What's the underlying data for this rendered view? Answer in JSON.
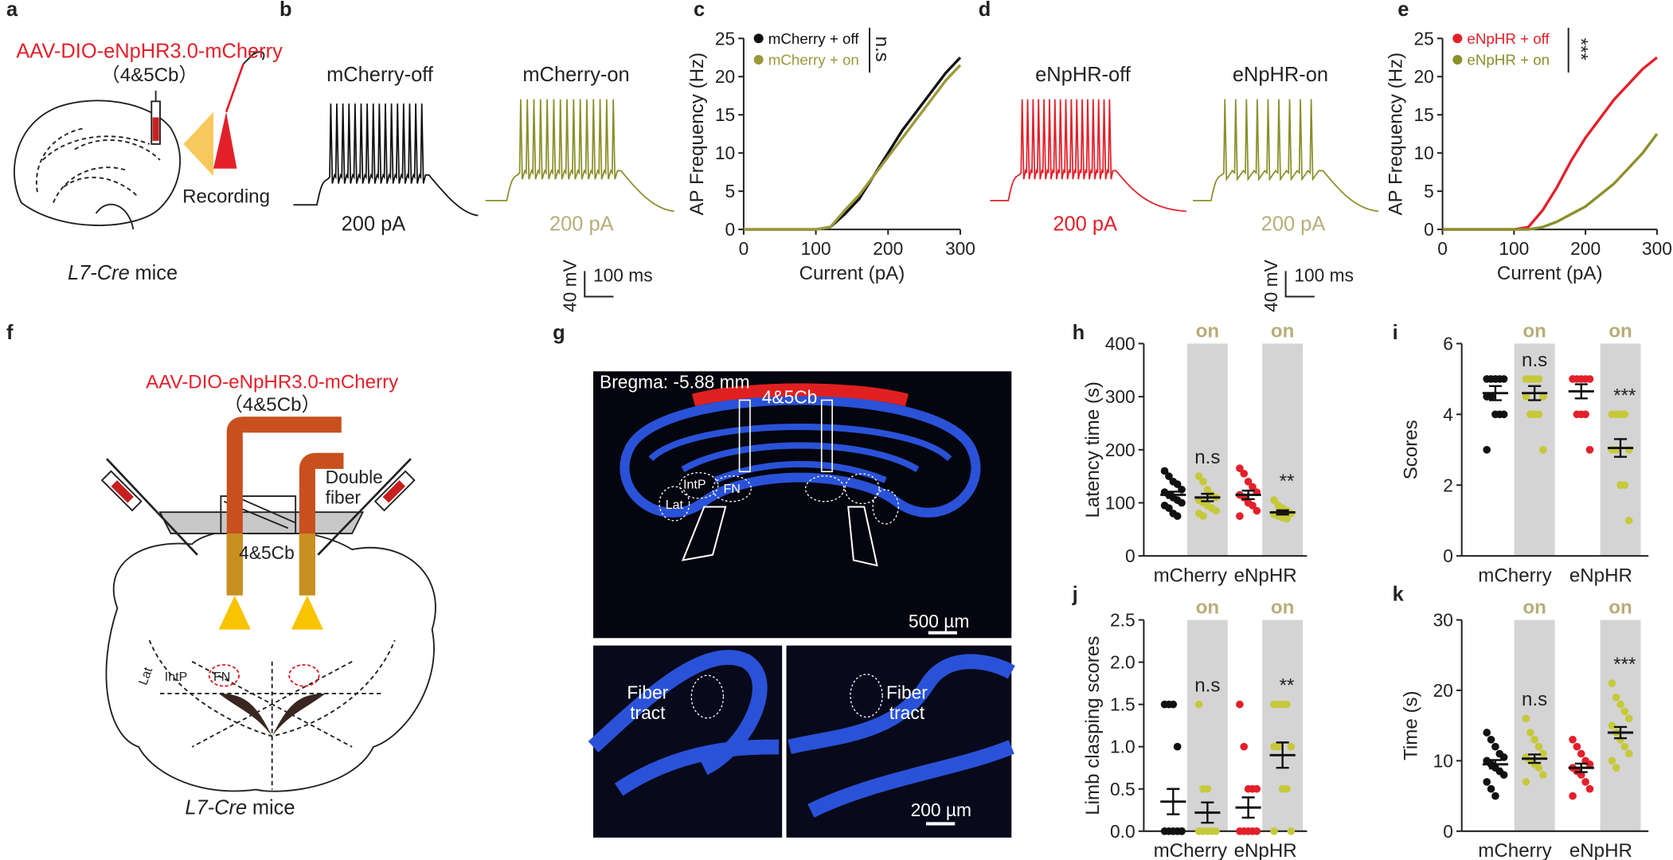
{
  "panel_labels": [
    "a",
    "b",
    "c",
    "d",
    "e",
    "f",
    "g",
    "h",
    "i",
    "j",
    "k"
  ],
  "panel_a": {
    "virus": "AAV-DIO-eNpHR3.0-mCherry",
    "region": "（4&5Cb）",
    "recording": "Recording",
    "mouse_line": "L7-Cre",
    "mouse_suffix": "mice"
  },
  "panel_b": {
    "traces": [
      "mCherry-off",
      "mCherry-on"
    ],
    "stimulus": "200 pA",
    "voltage_scale": "40 mV",
    "time_scale": "100 ms"
  },
  "panel_d": {
    "traces": [
      "eNpHR-off",
      "eNpHR-on"
    ],
    "stimulus": "200 pA",
    "voltage_scale": "40 mV",
    "time_scale": "100 ms"
  },
  "panel_f": {
    "virus": "AAV-DIO-eNpHR3.0-mCherry",
    "region": "（4&5Cb）",
    "fiber_label": [
      "Double",
      "fiber"
    ],
    "lobule": "4&5Cb",
    "nuclei": [
      "IntP",
      "FN",
      "Lat"
    ],
    "mouse_line": "L7-Cre",
    "mouse_suffix": "mice"
  },
  "panel_g": {
    "bregma": "Bregma: -5.88 mm",
    "lobule": "4&5Cb",
    "nuclei": [
      "IntP",
      "FN",
      "Lat"
    ],
    "scale_top": "500 µm",
    "tract": [
      "Fiber",
      "tract"
    ],
    "scale_bottom": "200 µm"
  },
  "chart_data": [
    {
      "type": "line",
      "x": [
        0,
        20,
        40,
        60,
        80,
        100,
        120,
        140,
        160,
        180,
        200,
        220,
        240,
        260,
        280,
        300
      ],
      "xlim": [
        0,
        300
      ],
      "xticks": [
        0,
        100,
        200,
        300
      ],
      "ylim": [
        0,
        25
      ],
      "yticks": [
        0,
        5,
        10,
        15,
        20,
        25
      ],
      "xlabel": "Current (pA)",
      "ylabel": "AP Frequency (Hz)",
      "series": [
        {
          "name": "mCherry + off",
          "color": "#111111",
          "values": [
            0,
            0,
            0,
            0,
            0,
            0,
            0.3,
            2,
            4,
            7,
            10,
            13,
            15.5,
            18,
            20.5,
            22.5
          ]
        },
        {
          "name": "mCherry + on",
          "color": "#9a9a3c",
          "values": [
            0,
            0,
            0,
            0,
            0,
            0,
            0.3,
            2.5,
            4.5,
            7,
            9.5,
            12,
            14.5,
            17,
            19.5,
            21.5
          ]
        }
      ],
      "annotation": "n.s"
    },
    {
      "type": "line",
      "x": [
        0,
        20,
        40,
        60,
        80,
        100,
        120,
        140,
        160,
        180,
        200,
        220,
        240,
        260,
        280,
        300
      ],
      "xlim": [
        0,
        300
      ],
      "xticks": [
        0,
        100,
        200,
        300
      ],
      "ylim": [
        0,
        25
      ],
      "yticks": [
        0,
        5,
        10,
        15,
        20,
        25
      ],
      "xlabel": "Current (pA)",
      "ylabel": "AP Frequency (Hz)",
      "series": [
        {
          "name": "eNpHR + off",
          "color": "#e3202a",
          "values": [
            0,
            0,
            0,
            0,
            0,
            0,
            0.3,
            2.5,
            5.5,
            9,
            12,
            14.5,
            17,
            19,
            21,
            22.5
          ]
        },
        {
          "name": "eNpHR + on",
          "color": "#8a8f2a",
          "values": [
            0,
            0,
            0,
            0,
            0,
            0,
            0,
            0.3,
            1,
            2,
            3,
            4.5,
            6,
            8,
            10,
            12.5
          ]
        }
      ],
      "annotation": "***"
    },
    {
      "type": "dot",
      "ylabel": "Latency time (s)",
      "categories": [
        "mCherry",
        "eNpHR"
      ],
      "on_label": "on",
      "ylim": [
        0,
        400
      ],
      "yticks": [
        0,
        100,
        200,
        300,
        400
      ],
      "annotations": [
        "n.s",
        "**"
      ],
      "groups": [
        {
          "color": "#111111",
          "mean": 115,
          "sem": 6,
          "points": [
            160,
            150,
            140,
            135,
            125,
            120,
            115,
            110,
            105,
            100,
            95,
            90,
            80,
            75
          ]
        },
        {
          "color": "#c6c93a",
          "mean": 110,
          "sem": 7,
          "points": [
            150,
            140,
            125,
            115,
            110,
            105,
            100,
            95,
            90,
            85,
            80,
            75
          ]
        },
        {
          "color": "#e3202a",
          "mean": 115,
          "sem": 8,
          "points": [
            165,
            155,
            140,
            130,
            120,
            115,
            110,
            100,
            95,
            85,
            75
          ]
        },
        {
          "color": "#c6c93a",
          "mean": 82,
          "sem": 4,
          "points": [
            105,
            95,
            90,
            85,
            80,
            78,
            75,
            72,
            70
          ]
        }
      ]
    },
    {
      "type": "dot",
      "ylabel": "Scores",
      "categories": [
        "mCherry",
        "eNpHR"
      ],
      "on_label": "on",
      "ylim": [
        0,
        6
      ],
      "yticks": [
        0,
        2,
        4,
        6
      ],
      "annotations": [
        "n.s",
        "***"
      ],
      "groups": [
        {
          "color": "#111111",
          "mean": 4.6,
          "sem": 0.2,
          "points": [
            5,
            5,
            5,
            5,
            5,
            4.5,
            4.5,
            4,
            4,
            4,
            3
          ]
        },
        {
          "color": "#c6c93a",
          "mean": 4.6,
          "sem": 0.2,
          "points": [
            5,
            5,
            5,
            5,
            4.5,
            4.5,
            4,
            4,
            4,
            3
          ]
        },
        {
          "color": "#e3202a",
          "mean": 4.65,
          "sem": 0.2,
          "points": [
            5,
            5,
            5,
            5,
            5,
            5,
            4,
            4,
            4,
            3
          ]
        },
        {
          "color": "#c6c93a",
          "mean": 3.05,
          "sem": 0.25,
          "points": [
            4,
            4,
            4,
            4,
            3,
            3,
            3,
            2,
            2,
            1
          ]
        }
      ]
    },
    {
      "type": "dot",
      "ylabel": "Limb clasping scores",
      "categories": [
        "mCherry",
        "eNpHR"
      ],
      "on_label": "on",
      "ylim": [
        0,
        2.5
      ],
      "yticks": [
        {
          "value": 0,
          "label": "0.0"
        },
        0.5,
        {
          "value": 1,
          "label": "1.0"
        },
        1.5,
        {
          "value": 2,
          "label": "2.0"
        },
        2.5
      ],
      "annotations": [
        "n.s",
        "**"
      ],
      "groups": [
        {
          "color": "#111111",
          "mean": 0.35,
          "sem": 0.15,
          "points": [
            1.5,
            1.5,
            1.5,
            1,
            0,
            0,
            0,
            0,
            0,
            0
          ]
        },
        {
          "color": "#c6c93a",
          "mean": 0.22,
          "sem": 0.12,
          "points": [
            1.5,
            0.5,
            0.5,
            0,
            0,
            0,
            0,
            0
          ]
        },
        {
          "color": "#e3202a",
          "mean": 0.28,
          "sem": 0.12,
          "points": [
            1.5,
            1,
            0.5,
            0.5,
            0.5,
            0,
            0,
            0,
            0,
            0
          ]
        },
        {
          "color": "#c6c93a",
          "mean": 0.9,
          "sem": 0.15,
          "points": [
            1.5,
            1.5,
            1.5,
            1.5,
            1,
            1,
            1,
            0.5,
            0.5,
            0,
            0
          ]
        }
      ]
    },
    {
      "type": "dot",
      "ylabel": "Time (s)",
      "categories": [
        "mCherry",
        "eNpHR"
      ],
      "on_label": "on",
      "ylim": [
        0,
        30
      ],
      "yticks": [
        0,
        10,
        20,
        30
      ],
      "annotations": [
        "n.s",
        "***"
      ],
      "groups": [
        {
          "color": "#111111",
          "mean": 9.5,
          "sem": 0.6,
          "points": [
            14,
            13,
            12,
            11,
            10.5,
            10,
            9.5,
            9,
            8.5,
            8,
            7,
            6,
            5
          ]
        },
        {
          "color": "#c6c93a",
          "mean": 10.3,
          "sem": 0.6,
          "points": [
            16,
            14,
            13,
            12,
            11,
            10.5,
            10,
            9.5,
            9,
            8,
            7
          ]
        },
        {
          "color": "#e3202a",
          "mean": 9,
          "sem": 0.6,
          "points": [
            13,
            12,
            11,
            10,
            9.5,
            9,
            8.5,
            8,
            7,
            6,
            5
          ]
        },
        {
          "color": "#c6c93a",
          "mean": 14,
          "sem": 0.8,
          "points": [
            21,
            19,
            18,
            17,
            16,
            15,
            14,
            13,
            12,
            11,
            10,
            9
          ]
        }
      ]
    }
  ]
}
